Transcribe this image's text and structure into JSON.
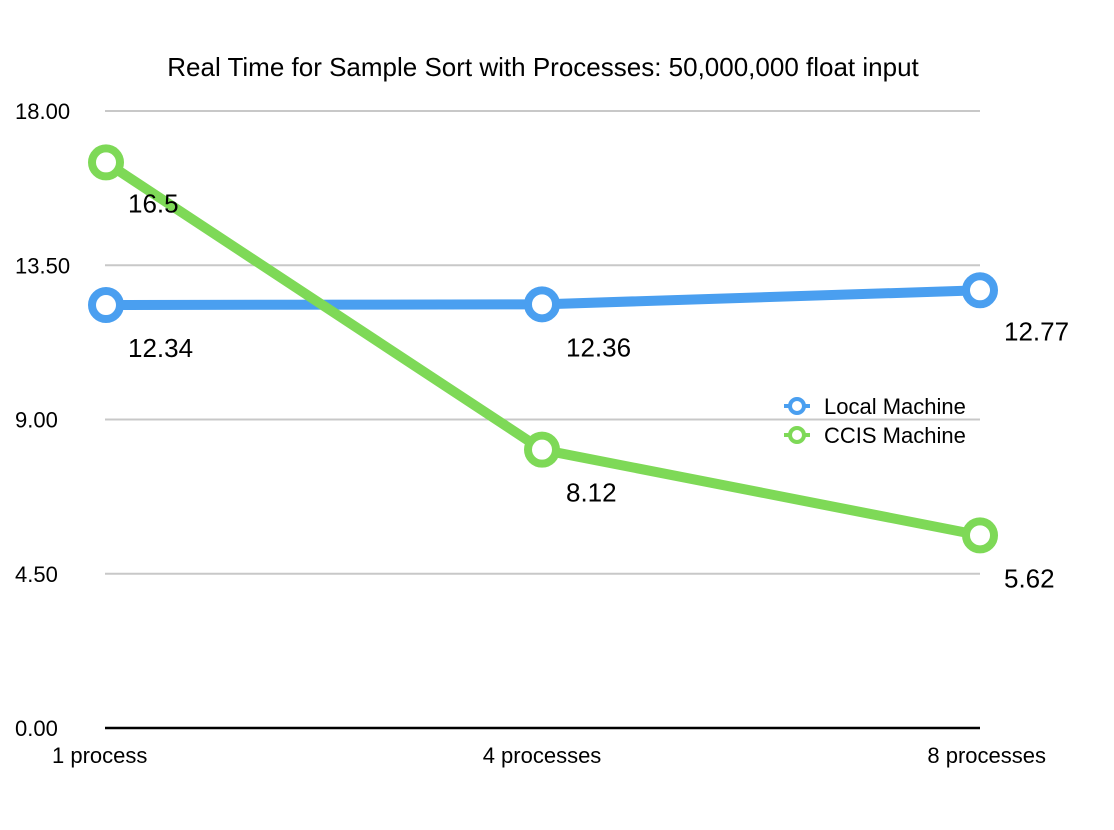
{
  "chart_data": {
    "type": "line",
    "title": "Real Time for Sample Sort with Processes: 50,000,000 float input",
    "xlabel": "",
    "ylabel": "",
    "categories": [
      "1 process",
      "4 processes",
      "8 processes"
    ],
    "y_ticks": [
      "0.00",
      "4.50",
      "9.00",
      "13.50",
      "18.00"
    ],
    "ylim": [
      0,
      18
    ],
    "grid": true,
    "legend_position": "right",
    "series": [
      {
        "name": "Local Machine",
        "color": "#4a9ff0",
        "values": [
          12.34,
          12.36,
          12.77
        ],
        "labels": [
          "12.34",
          "12.36",
          "12.77"
        ]
      },
      {
        "name": "CCIS Machine",
        "color": "#7ed957",
        "values": [
          16.5,
          8.12,
          5.62
        ],
        "labels": [
          "16.5",
          "8.12",
          "5.62"
        ]
      }
    ]
  }
}
